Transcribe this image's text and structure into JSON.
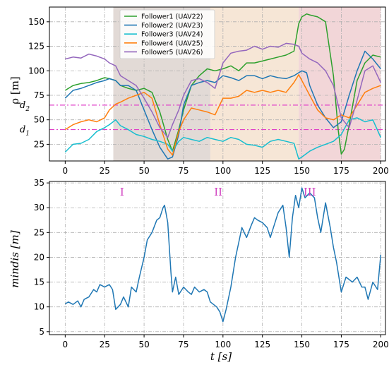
{
  "chart_data": [
    {
      "type": "line",
      "ylabel": "ρ [m]",
      "xlabel": "",
      "xlim": [
        -10,
        203
      ],
      "ylim": [
        8,
        165
      ],
      "xticks": [
        0,
        25,
        50,
        75,
        100,
        125,
        150,
        175,
        200
      ],
      "yticks": [
        25,
        50,
        75,
        100,
        125,
        150
      ],
      "grid": true,
      "legend": "top-center",
      "regions": [
        {
          "from": 30.5,
          "to": 92,
          "color": "#e2dad6"
        },
        {
          "from": 92,
          "to": 148,
          "color": "#f6e6d6"
        },
        {
          "from": 148,
          "to": 200,
          "color": "#f2d6d8"
        }
      ],
      "hlines": [
        {
          "label": "d",
          "sub": "2",
          "y": 65,
          "color": "#e040c8"
        },
        {
          "label": "d",
          "sub": "1",
          "y": 40,
          "color": "#e040c8"
        }
      ],
      "series": [
        {
          "name": "Follower1 (UAV22)",
          "color": "#2ca02c",
          "x": [
            0,
            5,
            10,
            15,
            20,
            25,
            28,
            32,
            35,
            40,
            45,
            50,
            55,
            60,
            65,
            68,
            72,
            75,
            80,
            85,
            90,
            95,
            100,
            105,
            110,
            115,
            120,
            125,
            130,
            135,
            140,
            145,
            148,
            150,
            153,
            155,
            160,
            165,
            170,
            173,
            175,
            177,
            180,
            185,
            190,
            195,
            200
          ],
          "y": [
            80,
            85,
            87,
            88,
            90,
            93,
            92,
            90,
            85,
            82,
            80,
            82,
            78,
            58,
            30,
            18,
            40,
            60,
            85,
            95,
            102,
            100,
            102,
            105,
            100,
            108,
            108,
            110,
            112,
            114,
            116,
            120,
            148,
            155,
            158,
            157,
            155,
            150,
            95,
            40,
            15,
            20,
            45,
            90,
            108,
            116,
            114
          ]
        },
        {
          "name": "Follower2 (UAV23)",
          "color": "#1f77b4",
          "x": [
            0,
            5,
            10,
            15,
            20,
            25,
            28,
            32,
            35,
            40,
            45,
            50,
            55,
            60,
            65,
            68,
            72,
            75,
            80,
            85,
            90,
            95,
            100,
            105,
            110,
            115,
            120,
            125,
            130,
            135,
            140,
            145,
            148,
            150,
            153,
            155,
            160,
            165,
            170,
            175,
            180,
            185,
            190,
            195,
            200
          ],
          "y": [
            72,
            80,
            82,
            85,
            88,
            90,
            92,
            90,
            85,
            85,
            80,
            60,
            40,
            22,
            10,
            12,
            35,
            65,
            85,
            88,
            90,
            88,
            95,
            93,
            90,
            95,
            95,
            92,
            95,
            93,
            92,
            95,
            98,
            100,
            98,
            85,
            65,
            52,
            42,
            48,
            75,
            100,
            120,
            112,
            102
          ]
        },
        {
          "name": "Follower3 (UAV24)",
          "color": "#17becf",
          "x": [
            0,
            5,
            10,
            15,
            20,
            25,
            28,
            32,
            35,
            40,
            45,
            50,
            55,
            60,
            65,
            68,
            72,
            75,
            80,
            85,
            90,
            95,
            100,
            105,
            110,
            115,
            120,
            125,
            130,
            135,
            140,
            145,
            148,
            150,
            155,
            160,
            165,
            170,
            175,
            180,
            185,
            190,
            195,
            200
          ],
          "y": [
            17,
            25,
            26,
            30,
            38,
            42,
            45,
            50,
            44,
            40,
            35,
            33,
            30,
            28,
            25,
            18,
            28,
            32,
            30,
            28,
            32,
            30,
            28,
            32,
            30,
            25,
            24,
            22,
            28,
            30,
            28,
            26,
            10,
            12,
            18,
            22,
            25,
            28,
            35,
            50,
            52,
            48,
            50,
            32
          ]
        },
        {
          "name": "Follower4 (UAV25)",
          "color": "#ff7f0e",
          "x": [
            0,
            5,
            10,
            15,
            20,
            25,
            28,
            32,
            35,
            40,
            45,
            50,
            55,
            60,
            65,
            68,
            72,
            75,
            80,
            85,
            90,
            95,
            100,
            105,
            110,
            115,
            120,
            125,
            130,
            135,
            140,
            145,
            148,
            150,
            155,
            160,
            165,
            170,
            175,
            180,
            185,
            190,
            195,
            200
          ],
          "y": [
            40,
            45,
            48,
            50,
            48,
            52,
            60,
            66,
            68,
            72,
            75,
            78,
            72,
            45,
            20,
            14,
            38,
            50,
            62,
            60,
            58,
            55,
            72,
            72,
            74,
            80,
            78,
            80,
            78,
            80,
            78,
            88,
            96,
            90,
            75,
            60,
            52,
            50,
            55,
            52,
            65,
            78,
            82,
            85
          ]
        },
        {
          "name": "Follower5 (UAV26)",
          "color": "#9467bd",
          "x": [
            0,
            5,
            10,
            15,
            20,
            25,
            28,
            32,
            35,
            40,
            45,
            50,
            55,
            60,
            65,
            68,
            72,
            75,
            80,
            85,
            90,
            95,
            100,
            105,
            110,
            115,
            120,
            125,
            130,
            135,
            140,
            145,
            148,
            150,
            155,
            160,
            165,
            170,
            175,
            180,
            185,
            190,
            195,
            200
          ],
          "y": [
            112,
            114,
            113,
            117,
            115,
            112,
            108,
            105,
            95,
            90,
            85,
            72,
            58,
            42,
            32,
            45,
            60,
            75,
            90,
            92,
            88,
            82,
            108,
            118,
            120,
            121,
            125,
            122,
            125,
            124,
            128,
            127,
            125,
            118,
            112,
            108,
            100,
            85,
            52,
            42,
            70,
            100,
            105,
            88
          ]
        }
      ]
    },
    {
      "type": "line",
      "ylabel": "mindis [m]",
      "xlabel": "t [s]",
      "xlim": [
        -10,
        203
      ],
      "ylim": [
        4.4,
        35.3
      ],
      "xticks": [
        0,
        25,
        50,
        75,
        100,
        125,
        150,
        175,
        200
      ],
      "yticks": [
        5,
        10,
        15,
        20,
        25,
        30,
        35
      ],
      "grid": true,
      "phases": [
        {
          "label": "I",
          "x": 36
        },
        {
          "label": "II",
          "x": 97
        },
        {
          "label": "III",
          "x": 155
        }
      ],
      "series": [
        {
          "name": "",
          "color": "#1f77b4",
          "x": [
            0,
            2,
            5,
            8,
            10,
            12,
            15,
            18,
            20,
            22,
            25,
            28,
            30,
            32,
            35,
            37,
            40,
            42,
            45,
            47,
            50,
            52,
            55,
            58,
            60,
            62,
            63,
            65,
            67,
            68,
            70,
            72,
            75,
            78,
            80,
            82,
            85,
            88,
            90,
            92,
            94,
            96,
            98,
            100,
            102,
            105,
            108,
            110,
            112,
            115,
            118,
            120,
            122,
            125,
            128,
            130,
            132,
            135,
            138,
            140,
            142,
            144,
            146,
            148,
            150,
            152,
            155,
            158,
            160,
            162,
            165,
            168,
            170,
            172,
            175,
            178,
            180,
            182,
            185,
            188,
            190,
            192,
            195,
            198,
            200
          ],
          "y": [
            10.6,
            11,
            10.5,
            11.2,
            10,
            11.5,
            12,
            13.5,
            13,
            14.5,
            14,
            14.5,
            13.5,
            9.5,
            10.5,
            12,
            10,
            14,
            13,
            16,
            20,
            23.5,
            25,
            27.5,
            28,
            30,
            30.5,
            27,
            17,
            13,
            16,
            12.5,
            14,
            13,
            12.5,
            14,
            13,
            13.5,
            13,
            11,
            10.5,
            10,
            9,
            7,
            9.5,
            14,
            20,
            23,
            26,
            24,
            26.5,
            28,
            27.5,
            27,
            26,
            24,
            26,
            29,
            30.5,
            26,
            20,
            28,
            32.5,
            30,
            34,
            32,
            33,
            32,
            28,
            25,
            31,
            26,
            22,
            19,
            13,
            16,
            15.5,
            15,
            16,
            14,
            14,
            11.5,
            15,
            13.5,
            20.5
          ]
        }
      ]
    }
  ]
}
